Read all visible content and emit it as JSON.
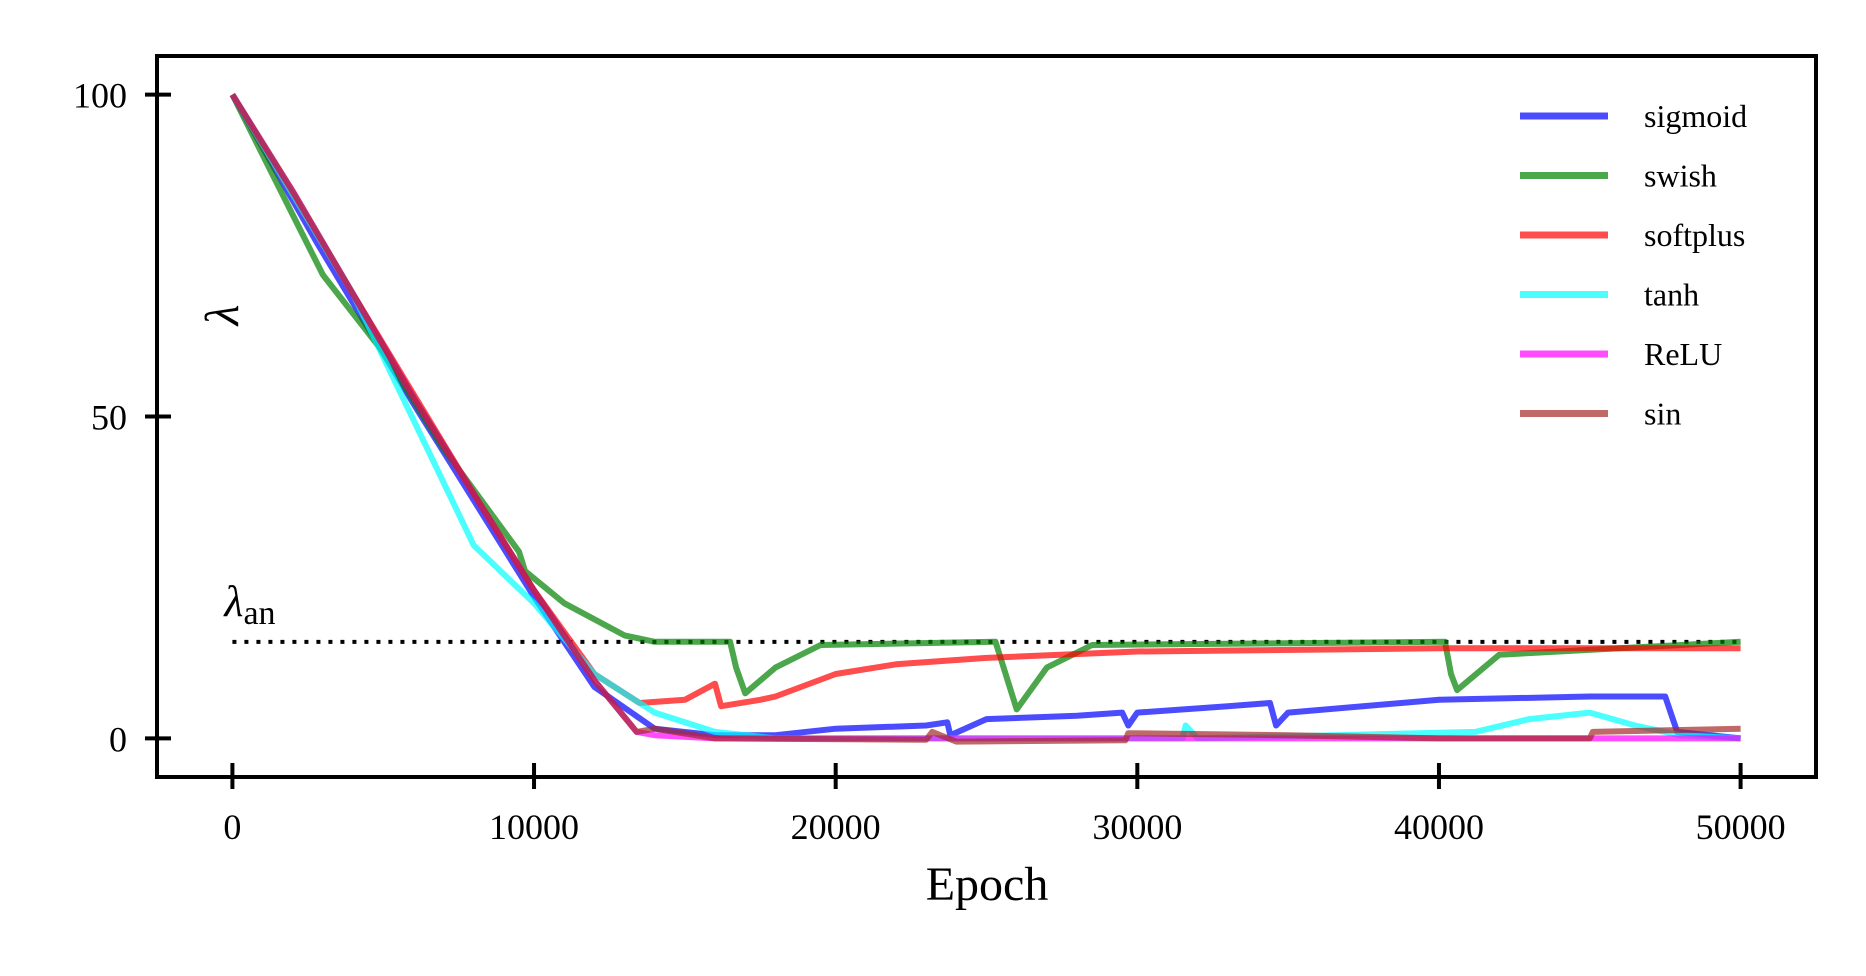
{
  "chart_data": {
    "type": "line",
    "xlabel": "Epoch",
    "ylabel": "λ",
    "xlim": [
      -2500,
      52500
    ],
    "ylim": [
      -6,
      106
    ],
    "xticks": [
      0,
      10000,
      20000,
      30000,
      40000,
      50000
    ],
    "yticks": [
      0,
      50,
      100
    ],
    "legend": "upper right",
    "reference_line": {
      "value": 15,
      "label": "λ",
      "label_sub": "an"
    },
    "series": [
      {
        "name": "sigmoid",
        "color": "#0000ff",
        "x": [
          0,
          2800,
          6000,
          8000,
          10000,
          12000,
          14000,
          16000,
          18000,
          20000,
          23000,
          23700,
          23800,
          25000,
          28000,
          29500,
          29700,
          30000,
          33000,
          34400,
          34600,
          35000,
          40000,
          45000,
          47500,
          47900,
          50000
        ],
        "values": [
          100,
          77,
          52,
          37,
          22,
          8,
          1.5,
          0.5,
          0.5,
          1.5,
          2,
          2.5,
          0.5,
          3,
          3.5,
          4,
          2,
          4,
          5,
          5.5,
          2,
          4,
          6,
          6.5,
          6.5,
          1,
          0
        ]
      },
      {
        "name": "swish",
        "color": "#008000",
        "x": [
          0,
          3000,
          5000,
          7000,
          9500,
          9700,
          11000,
          13000,
          14000,
          16500,
          16700,
          17000,
          18000,
          19500,
          25300,
          25500,
          26000,
          27000,
          28500,
          40200,
          40400,
          40600,
          42000,
          50000
        ],
        "values": [
          100,
          72,
          60,
          45,
          29,
          26,
          21,
          16,
          15,
          15,
          11,
          7,
          11,
          14.5,
          15,
          12,
          4.5,
          11,
          14.5,
          15,
          10,
          7.5,
          13,
          15
        ]
      },
      {
        "name": "softplus",
        "color": "#ff0000",
        "x": [
          0,
          4000,
          8000,
          10000,
          12000,
          13500,
          15000,
          16000,
          16200,
          17500,
          18000,
          20000,
          22000,
          25000,
          30000,
          40000,
          50000
        ],
        "values": [
          100,
          69,
          38,
          23,
          10,
          5.5,
          6,
          8.5,
          5,
          6,
          6.5,
          10,
          11.5,
          12.5,
          13.5,
          14,
          14
        ]
      },
      {
        "name": "tanh",
        "color": "#00ffff",
        "x": [
          0,
          4000,
          8000,
          10000,
          12000,
          14000,
          16000,
          18000,
          31500,
          31600,
          32000,
          41200,
          43000,
          45000,
          46500,
          48000,
          50000
        ],
        "values": [
          100,
          69,
          30,
          21,
          10,
          4,
          1,
          0,
          0,
          2,
          0,
          1,
          3,
          4,
          2,
          0.5,
          0
        ]
      },
      {
        "name": "ReLU",
        "color": "#ff00ff",
        "x": [
          0,
          2000,
          4000,
          6000,
          8000,
          10000,
          12000,
          13400,
          14000,
          16000,
          50000
        ],
        "values": [
          100,
          85,
          69,
          53,
          38,
          23,
          9,
          1,
          0.5,
          0,
          0
        ]
      },
      {
        "name": "sin",
        "color": "#a52a2a",
        "x": [
          0,
          2000,
          4000,
          6000,
          8000,
          10000,
          12000,
          13400,
          14000,
          16000,
          23000,
          23200,
          24000,
          29600,
          29700,
          35000,
          40000,
          45000,
          45100,
          50000
        ],
        "values": [
          100,
          85,
          69,
          53,
          38,
          23,
          9,
          1,
          1.5,
          0,
          -0.2,
          1,
          -0.5,
          -0.3,
          0.8,
          0.5,
          0,
          0,
          1,
          1.5
        ]
      }
    ]
  }
}
